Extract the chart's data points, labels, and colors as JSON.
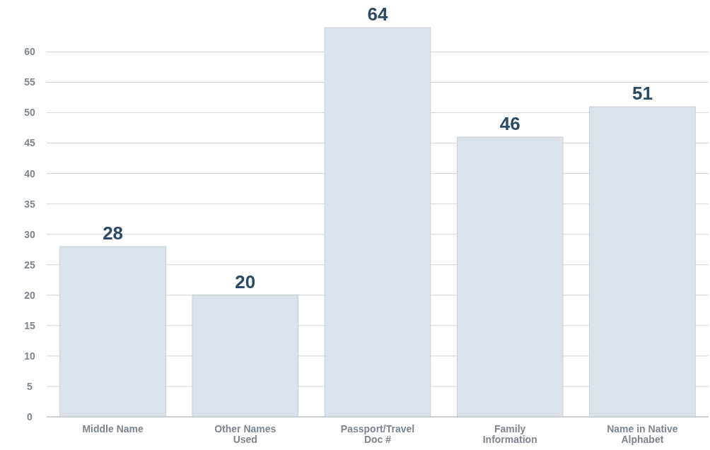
{
  "chart_data": {
    "type": "bar",
    "categories": [
      "Middle Name",
      "Other Names Used",
      "Passport/Travel Doc #",
      "Family Information",
      "Name in Native Alphabet"
    ],
    "values": [
      28,
      20,
      64,
      46,
      51
    ],
    "color": "#dae3ec",
    "ylim": [
      0,
      64
    ],
    "yticks": [
      0,
      5,
      10,
      15,
      20,
      25,
      30,
      35,
      40,
      45,
      50,
      55,
      60
    ],
    "grid": "y",
    "data_labels": true
  }
}
